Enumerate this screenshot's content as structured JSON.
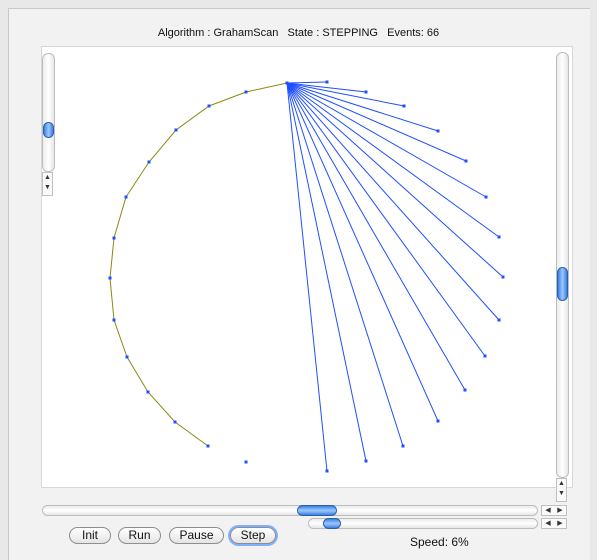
{
  "status": {
    "algorithm_label": "Algorithm : GrahamScan",
    "state_label": "State : STEPPING",
    "events_label": "Events: 66"
  },
  "controls": {
    "init_label": "Init",
    "run_label": "Run",
    "pause_label": "Pause",
    "step_label": "Step",
    "speed_label": "Speed: 6%"
  },
  "colors": {
    "hull": "#8a8a14",
    "rays": "#1f4fff",
    "points": "#1f4fff"
  },
  "scroll_arrows": {
    "up": "▲",
    "down": "▼",
    "left": "◀",
    "right": "▶"
  },
  "slider_levels": {
    "left_vertical_fraction": 0.52,
    "right_vertical_fraction": 0.5,
    "horizontal_fraction": 0.5,
    "speed_fraction": 0.06
  }
}
